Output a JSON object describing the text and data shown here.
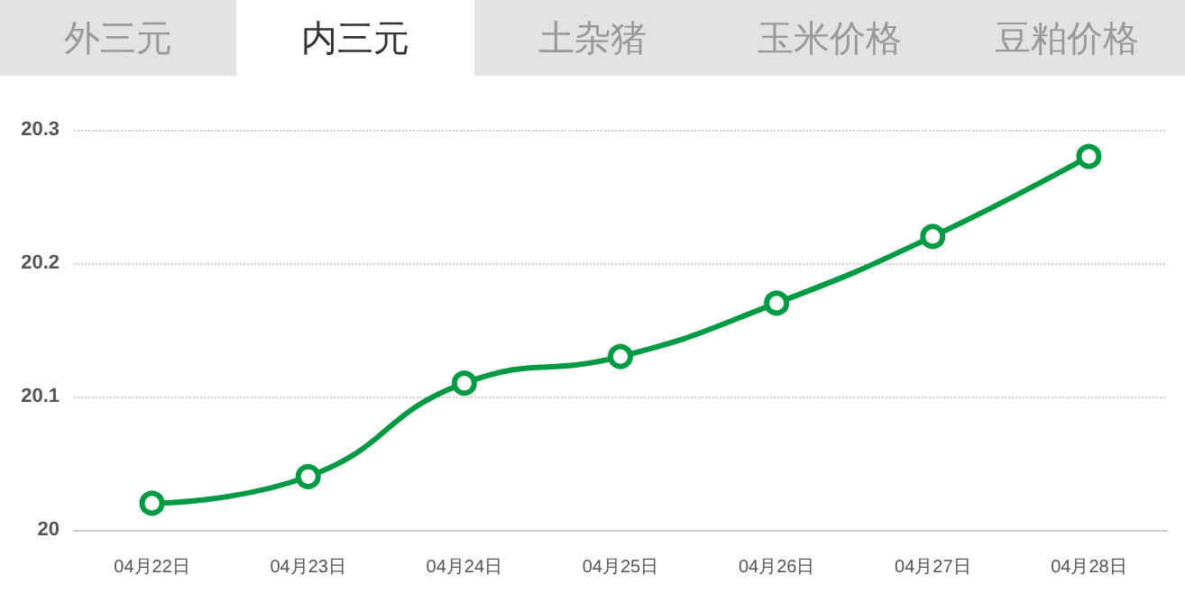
{
  "chart_data": {
    "type": "line",
    "annotations": [
      "外三元",
      "内三元",
      "土杂猪",
      "玉米价格",
      "豆粕价格"
    ],
    "categories": [
      "04月22日",
      "04月23日",
      "04月24日",
      "04月25日",
      "04月26日",
      "04月27日",
      "04月28日"
    ],
    "series": [
      {
        "color": "#009944",
        "values": [
          20.02,
          20.04,
          20.11,
          20.13,
          20.17,
          20.22,
          20.28
        ]
      }
    ],
    "ylim": [
      20,
      20.3
    ],
    "yticks": [
      20,
      20.1,
      20.2,
      20.3
    ],
    "grid": "y",
    "marker": "circle",
    "line_style": "solid"
  }
}
